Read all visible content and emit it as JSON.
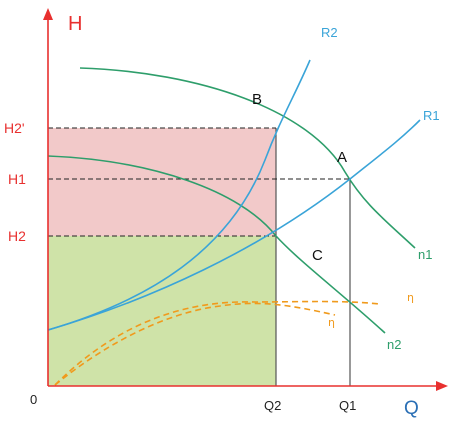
{
  "diagram": {
    "axes": {
      "y_title": "H",
      "x_title": "Q",
      "origin": "0"
    },
    "y_ticks": [
      "H2'",
      "H1",
      "H2"
    ],
    "x_ticks": [
      "Q2",
      "Q1"
    ],
    "points": [
      "B",
      "A",
      "C"
    ],
    "curves": {
      "system_resistance": [
        "R2",
        "R1"
      ],
      "pump_speed": [
        "n1",
        "n2"
      ],
      "efficiency": [
        "η",
        "η"
      ]
    },
    "colors": {
      "axis": "#e8302f",
      "label_red": "#e8302f",
      "pump_curve": "#2e9e6b",
      "system_curve": "#3aa4d8",
      "efficiency_curve": "#f09a1c",
      "region_upper": "#f2c9c9",
      "region_lower": "#cfe3a8",
      "guide_line": "#222222",
      "vertical_line": "#555555"
    }
  }
}
